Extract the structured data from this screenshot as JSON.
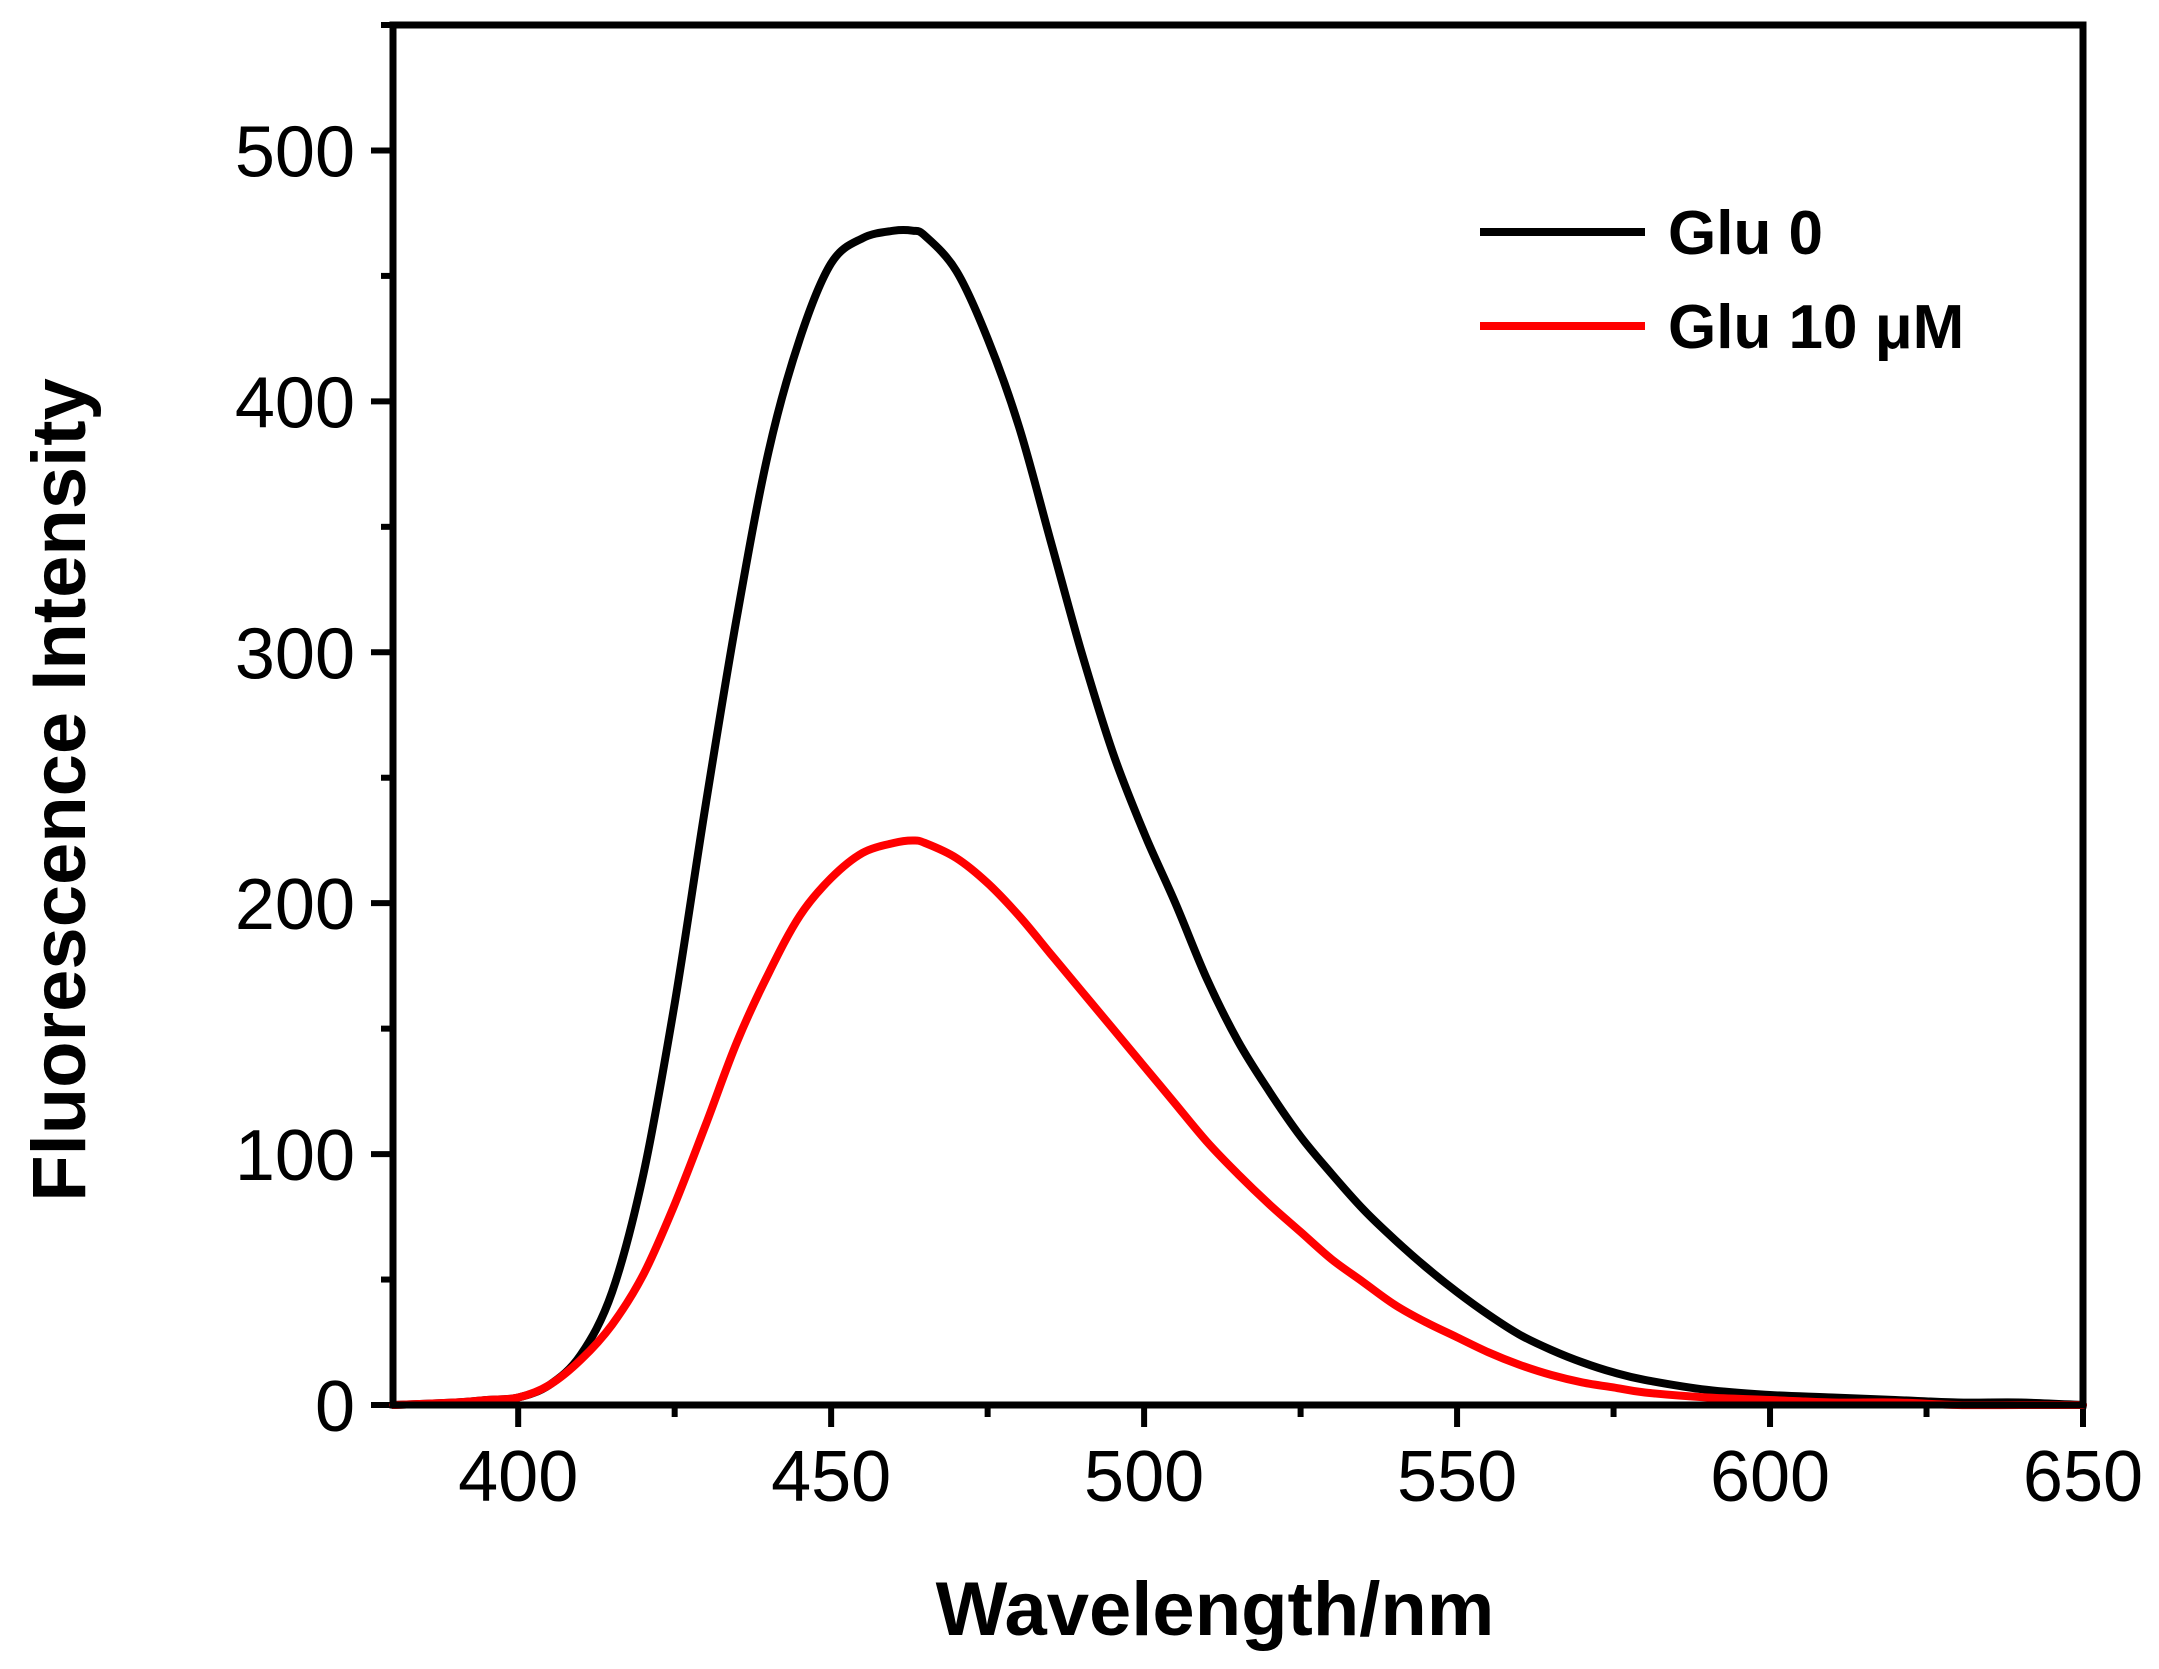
{
  "chart_data": {
    "type": "line",
    "title": "",
    "xlabel": "Wavelength/nm",
    "ylabel": "Fluorescence Intensity",
    "xlim": [
      380,
      650
    ],
    "ylim": [
      0,
      550
    ],
    "xticks": [
      400,
      450,
      500,
      550,
      600,
      650
    ],
    "xtick_labels": [
      "400",
      "450",
      "500",
      "550",
      "600",
      "650"
    ],
    "yticks": [
      0,
      100,
      200,
      300,
      400,
      500
    ],
    "ytick_labels": [
      "0",
      "100",
      "200",
      "300",
      "400",
      "500"
    ],
    "x_minor_ticks": [
      425,
      475,
      525,
      575,
      625
    ],
    "y_minor_ticks": [
      50,
      150,
      250,
      350,
      450,
      550
    ],
    "legend_position": "top-right",
    "series": [
      {
        "name": "Glu 0",
        "color": "#000000",
        "x": [
          380,
          390,
          395,
          400,
          405,
          410,
          415,
          420,
          425,
          430,
          435,
          440,
          445,
          450,
          455,
          460,
          463,
          465,
          470,
          475,
          480,
          485,
          490,
          495,
          500,
          505,
          510,
          515,
          520,
          525,
          530,
          535,
          540,
          545,
          550,
          555,
          560,
          565,
          570,
          575,
          580,
          590,
          600,
          610,
          620,
          630,
          640,
          650
        ],
        "y": [
          0,
          1,
          2,
          3,
          8,
          20,
          45,
          92,
          160,
          240,
          315,
          380,
          425,
          455,
          465,
          468,
          468,
          466,
          452,
          425,
          390,
          345,
          300,
          260,
          228,
          200,
          170,
          145,
          125,
          107,
          92,
          78,
          66,
          55,
          45,
          36,
          28,
          22,
          17,
          13,
          10,
          6,
          4,
          3,
          2,
          1,
          1,
          0
        ]
      },
      {
        "name": "Glu 10 μM",
        "color": "#ff0000",
        "x": [
          380,
          390,
          395,
          400,
          405,
          410,
          415,
          420,
          425,
          430,
          435,
          440,
          445,
          450,
          455,
          460,
          463,
          465,
          470,
          475,
          480,
          485,
          490,
          495,
          500,
          505,
          510,
          515,
          520,
          525,
          530,
          535,
          540,
          545,
          550,
          555,
          560,
          565,
          570,
          575,
          580,
          590,
          600,
          610,
          620,
          630,
          640,
          650
        ],
        "y": [
          0,
          1,
          2,
          3,
          8,
          18,
          32,
          52,
          80,
          112,
          145,
          172,
          195,
          210,
          220,
          224,
          225,
          224,
          218,
          208,
          195,
          180,
          165,
          150,
          135,
          120,
          105,
          92,
          80,
          69,
          58,
          49,
          40,
          33,
          27,
          21,
          16,
          12,
          9,
          7,
          5,
          3,
          2,
          1,
          1,
          0,
          0,
          0
        ]
      }
    ]
  }
}
